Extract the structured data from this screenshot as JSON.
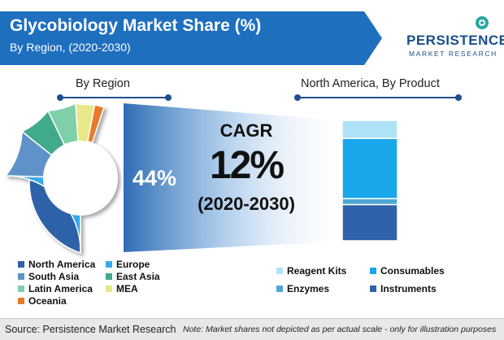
{
  "header": {
    "title": "Glycobiology Market Share (%)",
    "subtitle": "By Region, (2020-2030)"
  },
  "logo": {
    "line1": "PERSISTENCE",
    "line2": "MARKET RESEARCH"
  },
  "cagr": {
    "label": "CAGR",
    "value": "12%",
    "period": "(2020-2030)"
  },
  "footer": {
    "source": "Source: Persistence Market Research",
    "note": "Note: Market shares not depicted as per actual scale - only for illustration purposes"
  },
  "colors": {
    "banner": "#1f6fbf",
    "funnel_start": "#2f6db5",
    "funnel_end": "#ffffff"
  },
  "chart_data": [
    {
      "type": "pie",
      "title": "By Region",
      "center_label": "44%",
      "categories": [
        "North America",
        "Europe",
        "South Asia",
        "East Asia",
        "Latin America",
        "MEA",
        "Oceania"
      ],
      "values": [
        44,
        25,
        10,
        7,
        6,
        4,
        2
      ],
      "colors": [
        "#2f62a8",
        "#38a9e8",
        "#5f92c8",
        "#3faa8a",
        "#7fcfa8",
        "#e8e888",
        "#e87a2a"
      ]
    },
    {
      "type": "bar",
      "title": "North America, By Product",
      "stacked": true,
      "categories": [
        "Reagent Kits",
        "Consumables",
        "Enzymes",
        "Instruments"
      ],
      "values": [
        15,
        50,
        5,
        30
      ],
      "colors": [
        "#aee3f7",
        "#1aa6ea",
        "#4da8d8",
        "#2f62a8"
      ]
    }
  ]
}
